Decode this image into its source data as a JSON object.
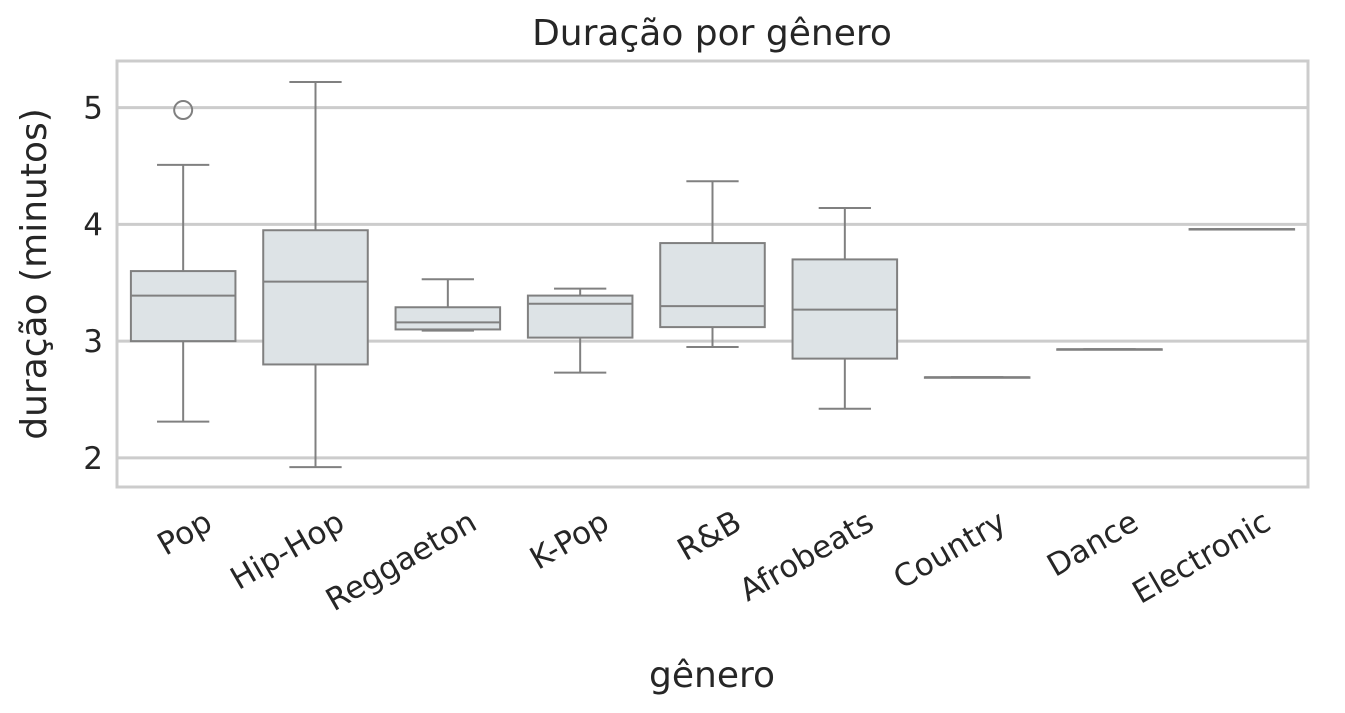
{
  "chart_data": {
    "type": "boxplot",
    "title": "Duração por gênero",
    "xlabel": "gênero",
    "ylabel": "duração (minutos)",
    "ylim": [
      1.75,
      5.4
    ],
    "yticks": [
      2,
      3,
      4,
      5
    ],
    "grid": "horizontal",
    "colors": {
      "box_fill": "#dde3e6",
      "box_line": "#808080",
      "grid": "#cccccc",
      "frame": "#cccccc"
    },
    "categories": [
      "Pop",
      "Hip-Hop",
      "Reggaeton",
      "K-Pop",
      "R&B",
      "Afrobeats",
      "Country",
      "Dance",
      "Electronic"
    ],
    "boxes": [
      {
        "category": "Pop",
        "whisker_low": 2.31,
        "q1": 3.0,
        "median": 3.39,
        "q3": 3.6,
        "whisker_high": 4.51,
        "outliers": [
          4.98
        ]
      },
      {
        "category": "Hip-Hop",
        "whisker_low": 1.92,
        "q1": 2.8,
        "median": 3.51,
        "q3": 3.95,
        "whisker_high": 5.22,
        "outliers": []
      },
      {
        "category": "Reggaeton",
        "whisker_low": 3.09,
        "q1": 3.1,
        "median": 3.16,
        "q3": 3.29,
        "whisker_high": 3.53,
        "outliers": []
      },
      {
        "category": "K-Pop",
        "whisker_low": 2.73,
        "q1": 3.03,
        "median": 3.32,
        "q3": 3.39,
        "whisker_high": 3.45,
        "outliers": []
      },
      {
        "category": "R&B",
        "whisker_low": 2.95,
        "q1": 3.12,
        "median": 3.3,
        "q3": 3.84,
        "whisker_high": 4.37,
        "outliers": []
      },
      {
        "category": "Afrobeats",
        "whisker_low": 2.42,
        "q1": 2.85,
        "median": 3.27,
        "q3": 3.7,
        "whisker_high": 4.14,
        "outliers": []
      },
      {
        "category": "Country",
        "whisker_low": 2.69,
        "q1": 2.69,
        "median": 2.69,
        "q3": 2.69,
        "whisker_high": 2.69,
        "outliers": []
      },
      {
        "category": "Dance",
        "whisker_low": 2.93,
        "q1": 2.93,
        "median": 2.93,
        "q3": 2.93,
        "whisker_high": 2.93,
        "outliers": []
      },
      {
        "category": "Electronic",
        "whisker_low": 3.96,
        "q1": 3.96,
        "median": 3.96,
        "q3": 3.96,
        "whisker_high": 3.96,
        "outliers": []
      }
    ]
  }
}
